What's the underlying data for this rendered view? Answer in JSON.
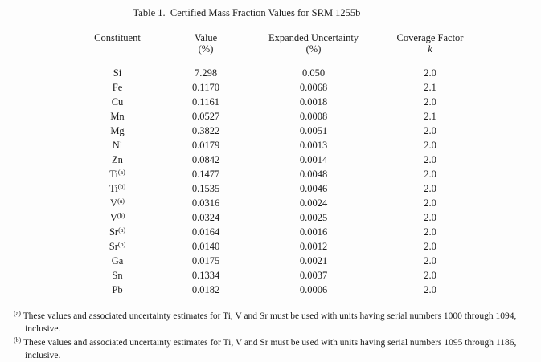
{
  "title": "Table 1.  Certified Mass Fraction Values for SRM 1255b",
  "table": {
    "columns": [
      {
        "label": "Constituent",
        "sub": ""
      },
      {
        "label": "Value",
        "sub": "(%)"
      },
      {
        "label": "Expanded Uncertainty",
        "sub": "(%)"
      },
      {
        "label": "Coverage Factor",
        "sub": "k"
      }
    ],
    "rows": [
      {
        "constituent": "Si",
        "sup": "",
        "value": "7.298",
        "uncertainty": "0.050",
        "k": "2.0"
      },
      {
        "constituent": "Fe",
        "sup": "",
        "value": "0.1170",
        "uncertainty": "0.0068",
        "k": "2.1"
      },
      {
        "constituent": "Cu",
        "sup": "",
        "value": "0.1161",
        "uncertainty": "0.0018",
        "k": "2.0"
      },
      {
        "constituent": "Mn",
        "sup": "",
        "value": "0.0527",
        "uncertainty": "0.0008",
        "k": "2.1"
      },
      {
        "constituent": "Mg",
        "sup": "",
        "value": "0.3822",
        "uncertainty": "0.0051",
        "k": "2.0"
      },
      {
        "constituent": "Ni",
        "sup": "",
        "value": "0.0179",
        "uncertainty": "0.0013",
        "k": "2.0"
      },
      {
        "constituent": "Zn",
        "sup": "",
        "value": "0.0842",
        "uncertainty": "0.0014",
        "k": "2.0"
      },
      {
        "constituent": "Ti",
        "sup": "(a)",
        "value": "0.1477",
        "uncertainty": "0.0048",
        "k": "2.0"
      },
      {
        "constituent": "Ti",
        "sup": "(b)",
        "value": "0.1535",
        "uncertainty": "0.0046",
        "k": "2.0"
      },
      {
        "constituent": "V",
        "sup": "(a)",
        "value": "0.0316",
        "uncertainty": "0.0024",
        "k": "2.0"
      },
      {
        "constituent": "V",
        "sup": "(b)",
        "value": "0.0324",
        "uncertainty": "0.0025",
        "k": "2.0"
      },
      {
        "constituent": "Sr",
        "sup": "(a)",
        "value": "0.0164",
        "uncertainty": "0.0016",
        "k": "2.0"
      },
      {
        "constituent": "Sr",
        "sup": "(b)",
        "value": "0.0140",
        "uncertainty": "0.0012",
        "k": "2.0"
      },
      {
        "constituent": "Ga",
        "sup": "",
        "value": "0.0175",
        "uncertainty": "0.0021",
        "k": "2.0"
      },
      {
        "constituent": "Sn",
        "sup": "",
        "value": "0.1334",
        "uncertainty": "0.0037",
        "k": "2.0"
      },
      {
        "constituent": "Pb",
        "sup": "",
        "value": "0.0182",
        "uncertainty": "0.0006",
        "k": "2.0"
      }
    ]
  },
  "footnotes": [
    {
      "marker": "(a)",
      "text": "These values and associated uncertainty estimates for Ti, V and Sr must be used with units having serial numbers 1000 through 1094, inclusive."
    },
    {
      "marker": "(b)",
      "text": "These values and associated uncertainty estimates for Ti, V and Sr must be used with units having serial numbers 1095 through 1186, inclusive."
    }
  ]
}
